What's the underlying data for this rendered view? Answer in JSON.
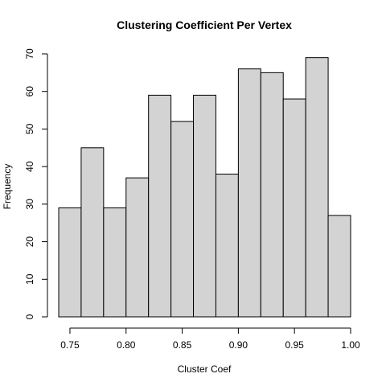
{
  "chart_data": {
    "type": "bar",
    "subtype": "histogram",
    "title": "Clustering Coefficient Per Vertex",
    "xlabel": "Cluster Coef",
    "ylabel": "Frequency",
    "bin_edges": [
      0.74,
      0.76,
      0.78,
      0.8,
      0.82,
      0.84,
      0.86,
      0.88,
      0.9,
      0.92,
      0.94,
      0.96,
      0.98,
      1.0
    ],
    "values": [
      29,
      45,
      29,
      37,
      59,
      52,
      59,
      38,
      66,
      65,
      58,
      69,
      27
    ],
    "xlim": [
      0.74,
      1.0
    ],
    "ylim": [
      0,
      70
    ],
    "x_ticks": [
      0.75,
      0.8,
      0.85,
      0.9,
      0.95,
      1.0
    ],
    "x_tick_labels": [
      "0.75",
      "0.80",
      "0.85",
      "0.90",
      "0.95",
      "1.00"
    ],
    "y_ticks": [
      0,
      10,
      20,
      30,
      40,
      50,
      60,
      70
    ],
    "y_tick_labels": [
      "0",
      "10",
      "20",
      "30",
      "40",
      "50",
      "60",
      "70"
    ],
    "bar_color": "#d3d3d3",
    "grid": false,
    "legend": "none"
  }
}
